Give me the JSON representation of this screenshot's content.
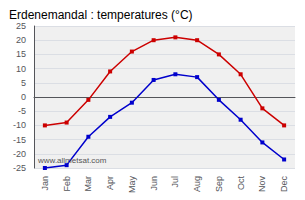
{
  "chart_data": {
    "type": "line",
    "title": "Erdenemandal : temperatures (°C)",
    "categories": [
      "Jan",
      "Feb",
      "Mar",
      "Apr",
      "May",
      "Jun",
      "Jul",
      "Aug",
      "Sep",
      "Oct",
      "Nov",
      "Dec"
    ],
    "series": [
      {
        "color": "#cc0000",
        "marker": "square",
        "values": [
          -10,
          -9,
          -1,
          9,
          16,
          20,
          21,
          20,
          15,
          8,
          -4,
          -10
        ]
      },
      {
        "color": "#0000cc",
        "marker": "square",
        "values": [
          -25,
          -24,
          -14,
          -7,
          -2,
          6,
          8,
          7,
          -1,
          -8,
          -16,
          -22
        ]
      }
    ],
    "ylim": [
      -25,
      25
    ],
    "yticks": [
      -25,
      -20,
      -15,
      -10,
      -5,
      0,
      5,
      10,
      15,
      20,
      25
    ],
    "grid": true,
    "annotations": [
      "www.allmetsat.com"
    ]
  }
}
